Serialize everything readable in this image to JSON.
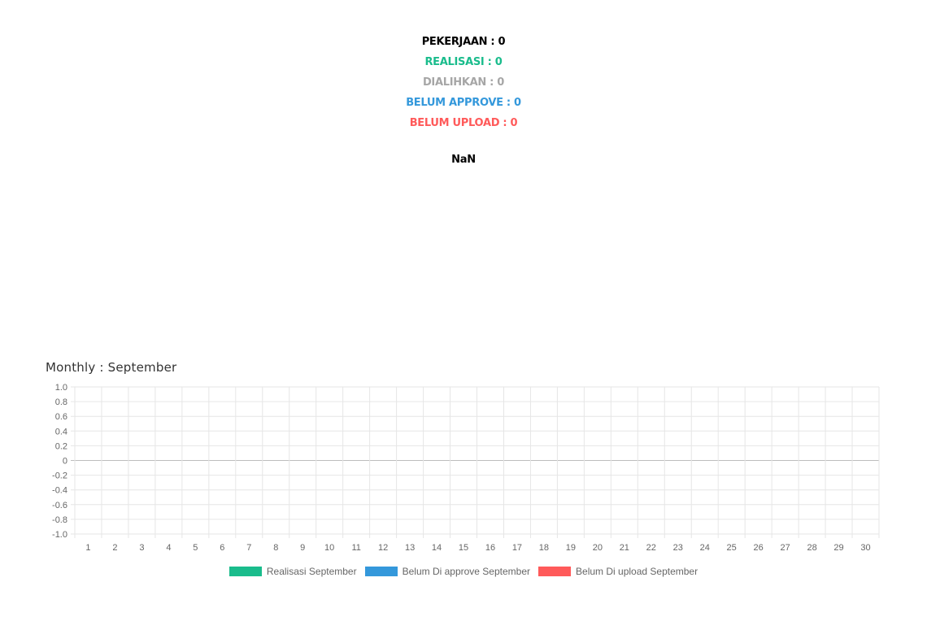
{
  "summary": {
    "pekerjaan": "PEKERJAAN : 0",
    "realisasi": "REALISASI : 0",
    "dialihkan": "DIALIHKAN : 0",
    "belum_approve": "BELUM APPROVE : 0",
    "belum_upload": "BELUM UPLOAD : 0",
    "percentage": "NaN"
  },
  "colors": {
    "pekerjaan": "#000000",
    "realisasi": "#1abc8c",
    "dialihkan": "#a6a6a6",
    "belum_approve": "#3498db",
    "belum_upload": "#ff5a5a"
  },
  "monthly_title": "Monthly : September",
  "chart_data": {
    "type": "bar",
    "title": "Monthly : September",
    "categories": [
      "1",
      "2",
      "3",
      "4",
      "5",
      "6",
      "7",
      "8",
      "9",
      "10",
      "11",
      "12",
      "13",
      "14",
      "15",
      "16",
      "17",
      "18",
      "19",
      "20",
      "21",
      "22",
      "23",
      "24",
      "25",
      "26",
      "27",
      "28",
      "29",
      "30"
    ],
    "series": [
      {
        "name": "Realisasi September",
        "color": "#1abc8c",
        "values": [
          0,
          0,
          0,
          0,
          0,
          0,
          0,
          0,
          0,
          0,
          0,
          0,
          0,
          0,
          0,
          0,
          0,
          0,
          0,
          0,
          0,
          0,
          0,
          0,
          0,
          0,
          0,
          0,
          0,
          0
        ]
      },
      {
        "name": "Belum Di approve September",
        "color": "#3498db",
        "values": [
          0,
          0,
          0,
          0,
          0,
          0,
          0,
          0,
          0,
          0,
          0,
          0,
          0,
          0,
          0,
          0,
          0,
          0,
          0,
          0,
          0,
          0,
          0,
          0,
          0,
          0,
          0,
          0,
          0,
          0
        ]
      },
      {
        "name": "Belum Di upload September",
        "color": "#ff5a5a",
        "values": [
          0,
          0,
          0,
          0,
          0,
          0,
          0,
          0,
          0,
          0,
          0,
          0,
          0,
          0,
          0,
          0,
          0,
          0,
          0,
          0,
          0,
          0,
          0,
          0,
          0,
          0,
          0,
          0,
          0,
          0
        ]
      }
    ],
    "yticks": [
      "1.0",
      "0.8",
      "0.6",
      "0.4",
      "0.2",
      "0",
      "-0.2",
      "-0.4",
      "-0.6",
      "-0.8",
      "-1.0"
    ],
    "ylim": [
      -1,
      1
    ],
    "grid": true,
    "legend_position": "bottom"
  }
}
